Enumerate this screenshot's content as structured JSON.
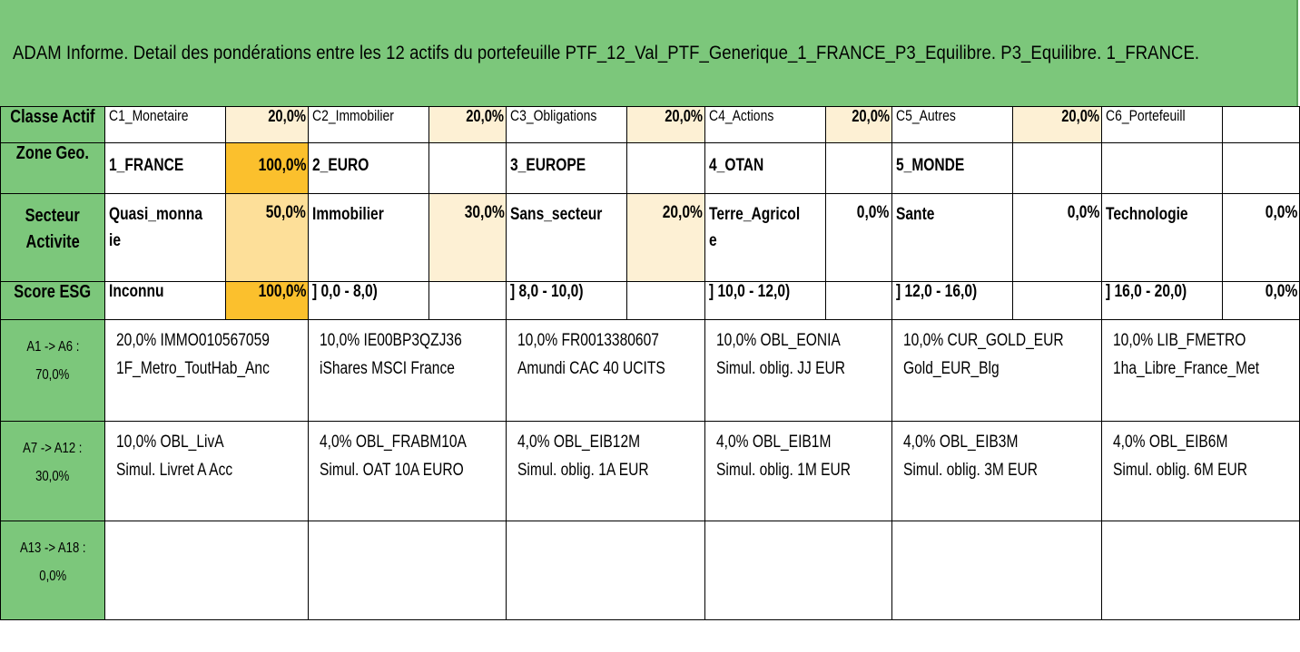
{
  "title": "ADAM Informe. Detail des pondérations entre les 12 actifs du portefeuille PTF_12_Val_PTF_Generique_1_FRANCE_P3_Equilibre. P3_Equilibre. 1_FRANCE.",
  "classe_actif": {
    "header": "Classe Actif",
    "cells": [
      {
        "label": "C1_Monetaire",
        "pct": "20,0%"
      },
      {
        "label": "C2_Immobilier",
        "pct": "20,0%"
      },
      {
        "label": "C3_Obligations",
        "pct": "20,0%"
      },
      {
        "label": "C4_Actions",
        "pct": "20,0%"
      },
      {
        "label": "C5_Autres",
        "pct": "20,0%"
      },
      {
        "label": "C6_Portefeuill",
        "pct": ""
      }
    ]
  },
  "zone_geo": {
    "header": "Zone Geo.",
    "cells": [
      {
        "label": "1_FRANCE",
        "pct": "100,0%"
      },
      {
        "label": "2_EURO",
        "pct": ""
      },
      {
        "label": "3_EUROPE",
        "pct": ""
      },
      {
        "label": "4_OTAN",
        "pct": ""
      },
      {
        "label": "5_MONDE",
        "pct": ""
      },
      {
        "label": "",
        "pct": ""
      }
    ]
  },
  "secteur": {
    "header_line1": "Secteur",
    "header_line2": "Activite",
    "cells": [
      {
        "label": "Quasi_monnaie",
        "pct": "50,0%"
      },
      {
        "label": "Immobilier",
        "pct": "30,0%"
      },
      {
        "label": "Sans_secteur",
        "pct": "20,0%"
      },
      {
        "label": "Terre_Agricole",
        "pct": "0,0%"
      },
      {
        "label": "Sante",
        "pct": "0,0%"
      },
      {
        "label": "Technologie",
        "pct": "0,0%"
      }
    ]
  },
  "score_esg": {
    "header": "Score ESG",
    "cells": [
      {
        "label": "Inconnu",
        "pct": "100,0%"
      },
      {
        "label": "] 0,0 - 8,0)",
        "pct": ""
      },
      {
        "label": "] 8,0 - 10,0)",
        "pct": ""
      },
      {
        "label": "] 10,0 - 12,0)",
        "pct": ""
      },
      {
        "label": "] 12,0 - 16,0)",
        "pct": ""
      },
      {
        "label": "] 16,0 - 20,0)",
        "pct": "0,0%"
      }
    ]
  },
  "asset_groups": [
    {
      "label_line1": "A1 -> A6 :",
      "label_line2": "70,0%",
      "assets": [
        {
          "line1": "20,0% IMMO010567059",
          "line2": "1F_Metro_ToutHab_Anc"
        },
        {
          "line1": "10,0% IE00BP3QZJ36",
          "line2": "iShares MSCI France"
        },
        {
          "line1": "10,0% FR0013380607",
          "line2": "Amundi CAC 40 UCITS"
        },
        {
          "line1": "10,0% OBL_EONIA",
          "line2": "Simul. oblig. JJ EUR"
        },
        {
          "line1": "10,0% CUR_GOLD_EUR",
          "line2": "Gold_EUR_Blg"
        },
        {
          "line1": "10,0% LIB_FMETRO",
          "line2": "1ha_Libre_France_Met"
        }
      ]
    },
    {
      "label_line1": "A7 -> A12 :",
      "label_line2": "30,0%",
      "assets": [
        {
          "line1": "10,0% OBL_LivA",
          "line2": "Simul. Livret A Acc"
        },
        {
          "line1": "4,0% OBL_FRABM10A",
          "line2": "Simul. OAT 10A EURO"
        },
        {
          "line1": "4,0% OBL_EIB12M",
          "line2": "Simul. oblig. 1A EUR"
        },
        {
          "line1": "4,0% OBL_EIB1M",
          "line2": "Simul. oblig. 1M EUR"
        },
        {
          "line1": "4,0% OBL_EIB3M",
          "line2": "Simul. oblig. 3M EUR"
        },
        {
          "line1": "4,0% OBL_EIB6M",
          "line2": "Simul. oblig. 6M EUR"
        }
      ]
    },
    {
      "label_line1": "A13 -> A18 :",
      "label_line2": "0,0%",
      "assets": [
        {
          "line1": "",
          "line2": ""
        },
        {
          "line1": "",
          "line2": ""
        },
        {
          "line1": "",
          "line2": ""
        },
        {
          "line1": "",
          "line2": ""
        },
        {
          "line1": "",
          "line2": ""
        },
        {
          "line1": "",
          "line2": ""
        }
      ]
    }
  ],
  "colors": {
    "header_green": "#7cc77b",
    "weight_light": "#fdf0d4",
    "weight_mid": "#fddf99",
    "weight_dark": "#fbc02d"
  }
}
